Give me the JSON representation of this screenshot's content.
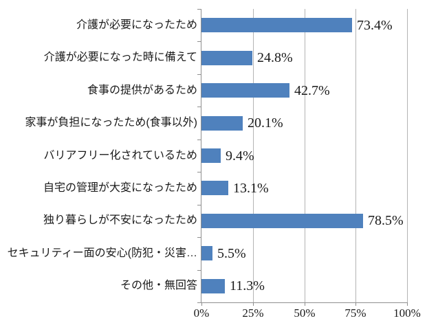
{
  "chart_data": {
    "type": "bar",
    "orientation": "horizontal",
    "title": "",
    "xlabel": "",
    "ylabel": "",
    "xlim": [
      0,
      100
    ],
    "grid": true,
    "legend_position": "none",
    "categories": [
      "介護が必要になったため",
      "介護が必要になった時に備えて",
      "食事の提供があるため",
      "家事が負担になったため(食事以外)",
      "バリアフリー化されているため",
      "自宅の管理が大変になったため",
      "独り暮らしが不安になったため",
      "セキュリティー面の安心(防犯・災害…",
      "その他・無回答"
    ],
    "values": [
      73.4,
      24.8,
      42.7,
      20.1,
      9.4,
      13.1,
      78.5,
      5.5,
      11.3
    ],
    "value_labels": [
      "73.4%",
      "24.8%",
      "42.7%",
      "20.1%",
      "9.4%",
      "13.1%",
      "78.5%",
      "5.5%",
      "11.3%"
    ],
    "x_tick_values": [
      0,
      25,
      50,
      75,
      100
    ],
    "x_tick_labels": [
      "0%",
      "25%",
      "50%",
      "75%",
      "100%"
    ],
    "colors": {
      "bar": "#4F81BD",
      "gridline": "#B3B3B3",
      "axis": "#8E8E8E",
      "text": "#1A1A1A",
      "background": "#FFFFFF"
    }
  }
}
